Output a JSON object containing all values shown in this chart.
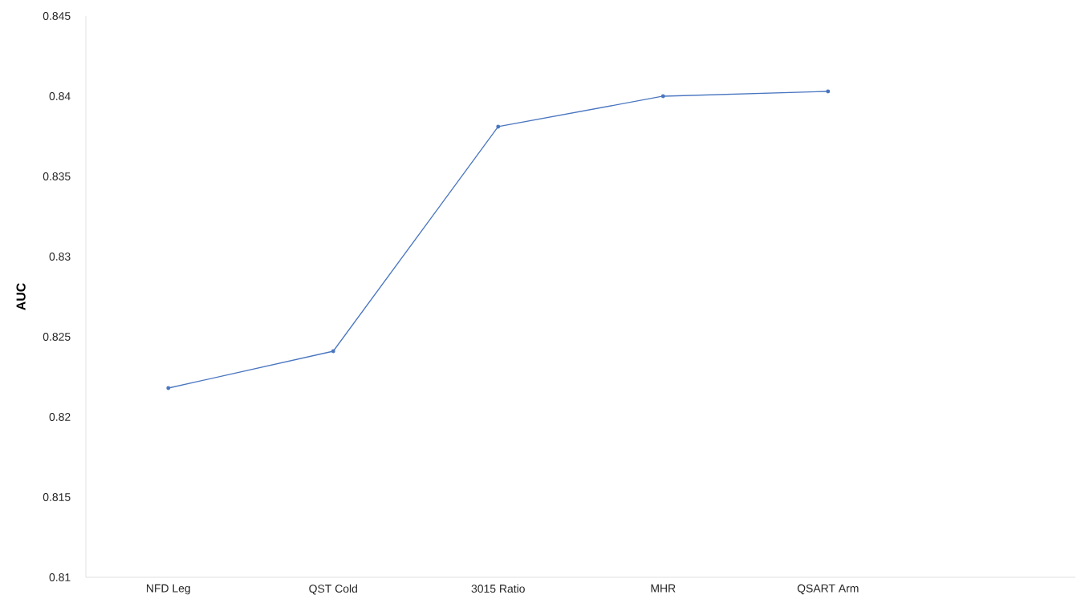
{
  "chart_data": {
    "type": "line",
    "ylabel": "AUC",
    "categories": [
      "NFD Leg",
      "QST Cold",
      "3015 Ratio",
      "MHR",
      "QSART Arm",
      null
    ],
    "series": [
      {
        "color": "#4a76c0",
        "values": [
          0.8218,
          0.8241,
          0.8381,
          0.84,
          0.8403,
          null
        ]
      }
    ],
    "ylim": [
      0.81,
      0.845
    ],
    "yticks": [
      0.81,
      0.815,
      0.82,
      0.825,
      0.83,
      0.835,
      0.84,
      0.845
    ],
    "marker": "circle",
    "line_style": "solid"
  }
}
